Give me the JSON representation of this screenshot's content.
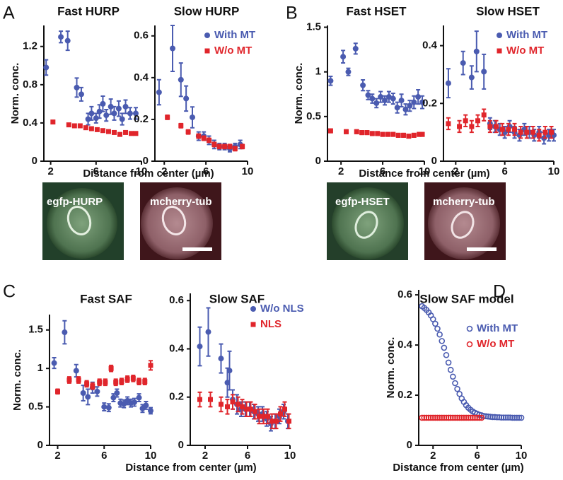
{
  "panel_labels": [
    "A",
    "B",
    "C",
    "D"
  ],
  "images": [
    {
      "label": "egfp-HURP"
    },
    {
      "label": "mcherry-tub"
    },
    {
      "label": "egfp-HSET"
    },
    {
      "label": "mcherry-tub"
    }
  ],
  "chart_data": [
    {
      "type": "scatter",
      "title": "Fast HURP",
      "ylabel": "Norm. conc.",
      "xlim": [
        1.4,
        10
      ],
      "ylim": [
        0,
        1.42
      ],
      "xticks": [
        2,
        6,
        10
      ],
      "yticks": [
        0,
        0.4,
        0.8,
        1.2
      ],
      "series": [
        {
          "color": "#4a5bb0",
          "marker": "circle",
          "x": [
            1.6,
            2.9,
            3.5,
            4.3,
            4.7,
            5.3,
            5.6,
            6.0,
            6.3,
            6.6,
            6.9,
            7.3,
            7.6,
            8.0,
            8.3,
            8.6,
            9.0,
            9.5
          ],
          "values": [
            0.98,
            1.3,
            1.26,
            0.77,
            0.7,
            0.44,
            0.5,
            0.45,
            0.52,
            0.6,
            0.48,
            0.57,
            0.5,
            0.55,
            0.44,
            0.57,
            0.5,
            0.5
          ],
          "errors": [
            0.08,
            0.06,
            0.1,
            0.1,
            0.07,
            0.06,
            0.07,
            0.05,
            0.07,
            0.08,
            0.06,
            0.08,
            0.07,
            0.08,
            0.06,
            0.07,
            0.06,
            0.06
          ]
        },
        {
          "color": "#e0252b",
          "marker": "square",
          "x": [
            2.2,
            3.6,
            4.1,
            4.6,
            5.1,
            5.6,
            6.1,
            6.6,
            7.1,
            7.6,
            8.1,
            8.6,
            9.1,
            9.5
          ],
          "values": [
            0.41,
            0.38,
            0.37,
            0.37,
            0.35,
            0.34,
            0.33,
            0.32,
            0.31,
            0.3,
            0.28,
            0.3,
            0.29,
            0.29
          ],
          "errors": [
            0.015,
            0.015,
            0.015,
            0.015,
            0.015,
            0.015,
            0.015,
            0.015,
            0.015,
            0.015,
            0.015,
            0.015,
            0.015,
            0.015
          ]
        }
      ]
    },
    {
      "type": "scatter",
      "title": "Slow HURP",
      "xlabel": "Distance from center (µm)",
      "legend": "upper right",
      "xlim": [
        1.1,
        10
      ],
      "ylim": [
        0,
        0.65
      ],
      "xticks": [
        2,
        6,
        10
      ],
      "yticks": [
        0,
        0.2,
        0.4,
        0.6
      ],
      "series": [
        {
          "name": "With MT",
          "color": "#4a5bb0",
          "marker": "circle",
          "x": [
            1.5,
            2.8,
            3.6,
            4.1,
            4.7,
            5.3,
            5.8,
            6.3,
            6.8,
            7.3,
            7.8,
            8.3,
            8.8,
            9.3
          ],
          "values": [
            0.33,
            0.54,
            0.39,
            0.3,
            0.21,
            0.12,
            0.12,
            0.1,
            0.08,
            0.07,
            0.07,
            0.06,
            0.07,
            0.08
          ],
          "errors": [
            0.06,
            0.11,
            0.08,
            0.06,
            0.05,
            0.02,
            0.02,
            0.02,
            0.02,
            0.015,
            0.015,
            0.015,
            0.015,
            0.02
          ]
        },
        {
          "name": "W/o MT",
          "color": "#e0252b",
          "marker": "square",
          "x": [
            2.3,
            3.6,
            4.3,
            5.3,
            5.8,
            6.3,
            6.8,
            7.3,
            7.8,
            8.3,
            8.8,
            9.5
          ],
          "values": [
            0.21,
            0.17,
            0.14,
            0.12,
            0.11,
            0.1,
            0.08,
            0.07,
            0.07,
            0.07,
            0.06,
            0.07
          ],
          "errors": [
            0.01,
            0.01,
            0.01,
            0.01,
            0.01,
            0.01,
            0.01,
            0.01,
            0.01,
            0.01,
            0.01,
            0.01
          ]
        }
      ]
    },
    {
      "type": "scatter",
      "title": "Fast HSET",
      "ylabel": "Norm. conc.",
      "xlim": [
        0.7,
        10
      ],
      "ylim": [
        0,
        1.52
      ],
      "xticks": [
        2,
        6,
        10
      ],
      "yticks": [
        0,
        0.5,
        1,
        1.5
      ],
      "series": [
        {
          "color": "#4a5bb0",
          "marker": "circle",
          "x": [
            1.0,
            2.2,
            2.7,
            3.4,
            4.1,
            4.6,
            5.0,
            5.4,
            5.8,
            6.2,
            6.6,
            7.0,
            7.4,
            7.8,
            8.2,
            8.6,
            9.0,
            9.4,
            9.8
          ],
          "values": [
            0.9,
            1.17,
            1.0,
            1.26,
            0.85,
            0.74,
            0.7,
            0.65,
            0.72,
            0.68,
            0.72,
            0.7,
            0.6,
            0.68,
            0.58,
            0.62,
            0.66,
            0.72,
            0.66
          ],
          "errors": [
            0.05,
            0.07,
            0.04,
            0.06,
            0.06,
            0.05,
            0.05,
            0.05,
            0.06,
            0.05,
            0.06,
            0.06,
            0.06,
            0.07,
            0.06,
            0.06,
            0.07,
            0.08,
            0.07
          ]
        },
        {
          "color": "#e0252b",
          "marker": "square",
          "x": [
            1.0,
            2.5,
            3.5,
            4.0,
            4.5,
            5.0,
            5.5,
            6.0,
            6.5,
            7.0,
            7.5,
            8.0,
            8.5,
            9.0,
            9.5,
            9.8
          ],
          "values": [
            0.34,
            0.33,
            0.33,
            0.32,
            0.32,
            0.31,
            0.31,
            0.3,
            0.3,
            0.3,
            0.29,
            0.29,
            0.28,
            0.29,
            0.3,
            0.3
          ],
          "errors": [
            0.02,
            0.02,
            0.02,
            0.02,
            0.02,
            0.02,
            0.02,
            0.02,
            0.02,
            0.02,
            0.02,
            0.02,
            0.02,
            0.02,
            0.02,
            0.02
          ]
        }
      ]
    },
    {
      "type": "scatter",
      "title": "Slow HSET",
      "xlabel": "Distance from center (µm)",
      "legend": "upper right",
      "xlim": [
        1,
        10
      ],
      "ylim": [
        0,
        0.47
      ],
      "xticks": [
        2,
        6,
        10
      ],
      "yticks": [
        0,
        0.2,
        0.4
      ],
      "series": [
        {
          "name": "With MT",
          "color": "#4a5bb0",
          "marker": "circle",
          "x": [
            1.4,
            2.6,
            3.3,
            3.7,
            4.3,
            4.8,
            5.2,
            5.6,
            6.0,
            6.4,
            6.8,
            7.2,
            7.6,
            8.0,
            8.4,
            8.8,
            9.2,
            9.6,
            10.0
          ],
          "values": [
            0.27,
            0.34,
            0.29,
            0.38,
            0.31,
            0.13,
            0.12,
            0.11,
            0.1,
            0.12,
            0.1,
            0.09,
            0.11,
            0.1,
            0.09,
            0.1,
            0.08,
            0.09,
            0.09
          ],
          "errors": [
            0.05,
            0.04,
            0.04,
            0.07,
            0.06,
            0.02,
            0.02,
            0.02,
            0.02,
            0.02,
            0.02,
            0.02,
            0.02,
            0.02,
            0.02,
            0.02,
            0.02,
            0.02,
            0.02
          ]
        },
        {
          "name": "W/o MT",
          "color": "#e0252b",
          "marker": "square",
          "x": [
            1.4,
            2.3,
            2.8,
            3.3,
            3.8,
            4.3,
            4.8,
            5.3,
            5.8,
            6.3,
            6.8,
            7.3,
            7.8,
            8.3,
            8.8,
            9.3,
            9.8
          ],
          "values": [
            0.13,
            0.12,
            0.14,
            0.12,
            0.14,
            0.16,
            0.12,
            0.12,
            0.11,
            0.11,
            0.11,
            0.1,
            0.1,
            0.1,
            0.09,
            0.1,
            0.1
          ],
          "errors": [
            0.02,
            0.02,
            0.02,
            0.02,
            0.02,
            0.02,
            0.02,
            0.02,
            0.02,
            0.02,
            0.02,
            0.02,
            0.02,
            0.02,
            0.02,
            0.02,
            0.02
          ]
        }
      ]
    },
    {
      "type": "scatter",
      "title": "Fast SAF",
      "ylabel": "Norm. conc.",
      "xlim": [
        1.3,
        10
      ],
      "ylim": [
        0,
        1.7
      ],
      "xticks": [
        2,
        6,
        10
      ],
      "yticks": [
        0,
        0.5,
        1,
        1.5
      ],
      "series": [
        {
          "color": "#4a5bb0",
          "marker": "circle",
          "x": [
            1.7,
            2.6,
            3.6,
            4.2,
            4.6,
            5.0,
            5.4,
            6.0,
            6.4,
            6.8,
            7.1,
            7.4,
            7.7,
            8.0,
            8.3,
            8.6,
            9.0,
            9.3,
            9.6,
            10.0
          ],
          "values": [
            1.07,
            1.47,
            0.97,
            0.68,
            0.63,
            0.75,
            0.7,
            0.5,
            0.49,
            0.62,
            0.68,
            0.55,
            0.54,
            0.58,
            0.55,
            0.56,
            0.62,
            0.48,
            0.52,
            0.45
          ],
          "errors": [
            0.07,
            0.15,
            0.08,
            0.1,
            0.1,
            0.07,
            0.06,
            0.05,
            0.05,
            0.05,
            0.05,
            0.05,
            0.05,
            0.05,
            0.05,
            0.05,
            0.05,
            0.05,
            0.05,
            0.04
          ]
        },
        {
          "color": "#e0252b",
          "marker": "square",
          "x": [
            2.0,
            3.0,
            3.8,
            4.5,
            5.0,
            5.6,
            6.1,
            6.6,
            7.0,
            7.5,
            8.0,
            8.5,
            9.0,
            9.5,
            10.0
          ],
          "values": [
            0.7,
            0.85,
            0.85,
            0.8,
            0.77,
            0.82,
            0.82,
            1.0,
            0.82,
            0.83,
            0.86,
            0.87,
            0.83,
            0.83,
            1.04
          ],
          "errors": [
            0.03,
            0.04,
            0.04,
            0.04,
            0.04,
            0.04,
            0.04,
            0.04,
            0.04,
            0.04,
            0.04,
            0.04,
            0.04,
            0.04,
            0.06
          ]
        }
      ]
    },
    {
      "type": "scatter",
      "title": "Slow SAF",
      "xlabel": "Distance from center (µm)",
      "legend": "upper right",
      "xlim": [
        0.6,
        10
      ],
      "ylim": [
        0,
        0.63
      ],
      "xticks": [
        2,
        6,
        10
      ],
      "yticks": [
        0,
        0.2,
        0.4,
        0.6
      ],
      "series": [
        {
          "name": "W/o NLS",
          "color": "#4a5bb0",
          "marker": "circle",
          "x": [
            1.5,
            2.3,
            3.5,
            4.1,
            4.3,
            4.6,
            5.0,
            5.4,
            5.8,
            6.2,
            6.6,
            7.0,
            7.4,
            7.8,
            8.2,
            8.6,
            9.0,
            9.4,
            9.8
          ],
          "values": [
            0.41,
            0.47,
            0.36,
            0.26,
            0.31,
            0.19,
            0.17,
            0.15,
            0.15,
            0.15,
            0.14,
            0.13,
            0.13,
            0.11,
            0.09,
            0.1,
            0.12,
            0.14,
            0.1
          ],
          "errors": [
            0.08,
            0.1,
            0.06,
            0.06,
            0.08,
            0.04,
            0.04,
            0.03,
            0.03,
            0.03,
            0.03,
            0.03,
            0.03,
            0.03,
            0.03,
            0.03,
            0.03,
            0.03,
            0.03
          ]
        },
        {
          "name": "NLS",
          "color": "#e0252b",
          "marker": "square",
          "x": [
            1.5,
            2.5,
            3.5,
            4.1,
            4.6,
            5.1,
            5.5,
            5.9,
            6.3,
            6.7,
            7.1,
            7.5,
            7.9,
            8.3,
            8.7,
            9.1,
            9.5,
            9.9
          ],
          "values": [
            0.19,
            0.19,
            0.17,
            0.16,
            0.18,
            0.17,
            0.16,
            0.15,
            0.15,
            0.14,
            0.12,
            0.12,
            0.12,
            0.1,
            0.1,
            0.13,
            0.15,
            0.1
          ],
          "errors": [
            0.03,
            0.03,
            0.03,
            0.03,
            0.03,
            0.03,
            0.03,
            0.03,
            0.03,
            0.03,
            0.03,
            0.03,
            0.03,
            0.03,
            0.03,
            0.03,
            0.03,
            0.03
          ]
        }
      ]
    },
    {
      "type": "scatter",
      "title": "Slow SAF model",
      "ylabel": "Norm. conc.",
      "xlabel": "Distance from center (µm)",
      "legend": "upper right",
      "xlim": [
        0.7,
        10
      ],
      "ylim": [
        0,
        0.62
      ],
      "xticks": [
        2,
        6,
        10
      ],
      "yticks": [
        0,
        0.2,
        0.4,
        0.6
      ],
      "series": [
        {
          "name": "With MT",
          "color": "#4a5bb0",
          "marker": "open-circle",
          "x": [
            1.0,
            1.2,
            1.4,
            1.6,
            1.8,
            2.0,
            2.2,
            2.4,
            2.6,
            2.8,
            3.0,
            3.2,
            3.4,
            3.6,
            3.8,
            4.0,
            4.2,
            4.4,
            4.6,
            4.8,
            5.0,
            5.2,
            5.4,
            5.6,
            5.8,
            6.0,
            6.2,
            6.4,
            6.6,
            6.8,
            7.0,
            7.2,
            7.4,
            7.6,
            7.8,
            8.0,
            8.2,
            8.4,
            8.6,
            8.8,
            9.0,
            9.2,
            9.4,
            9.6,
            9.8,
            10.0
          ],
          "values": [
            0.555,
            0.548,
            0.54,
            0.53,
            0.518,
            0.503,
            0.485,
            0.465,
            0.442,
            0.416,
            0.389,
            0.36,
            0.33,
            0.301,
            0.274,
            0.248,
            0.225,
            0.205,
            0.187,
            0.173,
            0.16,
            0.15,
            0.142,
            0.135,
            0.13,
            0.126,
            0.122,
            0.12,
            0.117,
            0.116,
            0.115,
            0.114,
            0.113,
            0.113,
            0.112,
            0.112,
            0.111,
            0.111,
            0.111,
            0.111,
            0.111,
            0.11,
            0.11,
            0.11,
            0.11,
            0.11
          ]
        },
        {
          "name": "W/o MT",
          "color": "#e0252b",
          "marker": "open-circle",
          "x": [
            1.0,
            1.2,
            1.4,
            1.6,
            1.8,
            2.0,
            2.2,
            2.4,
            2.6,
            2.8,
            3.0,
            3.2,
            3.4,
            3.6,
            3.8,
            4.0,
            4.2,
            4.4,
            4.6,
            4.8,
            5.0,
            5.2,
            5.4,
            5.6,
            5.8,
            6.0,
            6.2,
            6.4
          ],
          "values": [
            0.11,
            0.11,
            0.11,
            0.11,
            0.11,
            0.11,
            0.11,
            0.11,
            0.11,
            0.11,
            0.11,
            0.11,
            0.11,
            0.11,
            0.11,
            0.11,
            0.11,
            0.11,
            0.11,
            0.11,
            0.11,
            0.11,
            0.11,
            0.11,
            0.11,
            0.11,
            0.11,
            0.11
          ]
        }
      ]
    }
  ]
}
